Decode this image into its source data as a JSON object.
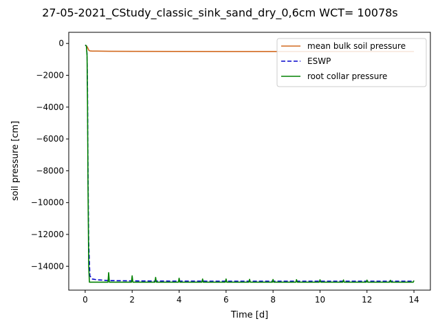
{
  "chart_data": {
    "type": "line",
    "title": "27-05-2021_CStudy_classic_sink_sand_dry_0,6cm  WCT= 10078s",
    "xlabel": "Time [d]",
    "ylabel": "soil pressure [cm]",
    "xlim": [
      -0.7,
      14.7
    ],
    "ylim": [
      -15500,
      700
    ],
    "xticks": [
      0,
      2,
      4,
      6,
      8,
      10,
      12,
      14
    ],
    "yticks": [
      0,
      -2000,
      -4000,
      -6000,
      -8000,
      -10000,
      -12000,
      -14000
    ],
    "grid": false,
    "legend_position": "top-right",
    "series": [
      {
        "name": "mean bulk soil pressure",
        "color": "#d2691e",
        "dash": "solid",
        "x": [
          0,
          0.05,
          0.1,
          0.15,
          0.2,
          0.3,
          0.5,
          1,
          2,
          4,
          6,
          8,
          10,
          12,
          14
        ],
        "y": [
          -100,
          -150,
          -250,
          -420,
          -470,
          -480,
          -480,
          -490,
          -495,
          -500,
          -505,
          -505,
          -505,
          -505,
          -505
        ]
      },
      {
        "name": "ESWP",
        "color": "#0000cc",
        "dash": "dashed",
        "x": [
          0,
          0.05,
          0.08,
          0.1,
          0.12,
          0.15,
          0.2,
          0.3,
          0.5,
          1,
          2,
          3,
          4,
          6,
          8,
          10,
          12,
          14
        ],
        "y": [
          -100,
          -150,
          -700,
          -3000,
          -8000,
          -12500,
          -14600,
          -14800,
          -14850,
          -14900,
          -14920,
          -14930,
          -14935,
          -14940,
          -14940,
          -14940,
          -14940,
          -14940
        ]
      },
      {
        "name": "root collar pressure",
        "color": "#008000",
        "dash": "solid",
        "x": [
          0,
          0.05,
          0.08,
          0.1,
          0.12,
          0.15,
          0.18,
          0.5,
          0.97,
          1.0,
          1.03,
          1.1,
          1.97,
          2.0,
          2.03,
          2.97,
          3.0,
          3.03,
          3.97,
          4.0,
          4.03,
          4.97,
          5.0,
          5.03,
          5.97,
          6.0,
          6.03,
          6.97,
          7.0,
          7.03,
          7.97,
          8.0,
          8.03,
          8.97,
          9.0,
          9.03,
          9.97,
          10.0,
          10.03,
          10.97,
          11.0,
          11.03,
          11.97,
          12.0,
          12.03,
          12.97,
          13.0,
          13.03,
          13.97,
          14.0
        ],
        "y": [
          -100,
          -150,
          -800,
          -4000,
          -9000,
          -14000,
          -15000,
          -15000,
          -15000,
          -14400,
          -15000,
          -15000,
          -15000,
          -14600,
          -15000,
          -15000,
          -14700,
          -15000,
          -15000,
          -14750,
          -15000,
          -15000,
          -14800,
          -15000,
          -15000,
          -14800,
          -15000,
          -15000,
          -14820,
          -15000,
          -15000,
          -14830,
          -15000,
          -15000,
          -14840,
          -15000,
          -15000,
          -14850,
          -15000,
          -15000,
          -14860,
          -15000,
          -15000,
          -14870,
          -15000,
          -15000,
          -14880,
          -15000,
          -15000,
          -14900
        ]
      }
    ]
  }
}
